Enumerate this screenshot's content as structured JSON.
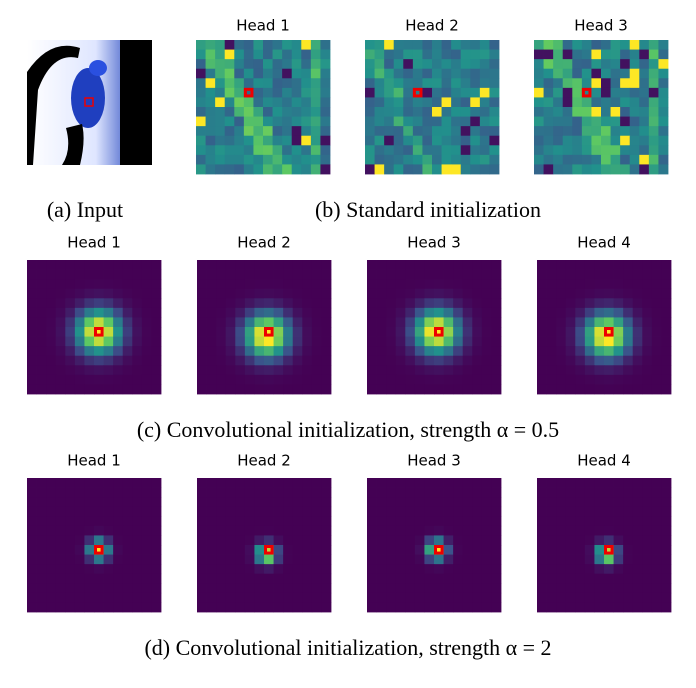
{
  "input": {
    "caption": "(a) Input"
  },
  "standard": {
    "heads": [
      "Head 1",
      "Head 2",
      "Head 3"
    ],
    "caption": "(b) Standard initialization"
  },
  "conv_low": {
    "heads": [
      "Head 1",
      "Head 2",
      "Head 3",
      "Head 4"
    ],
    "caption": "(c) Convolutional initialization, strength α = 0.5"
  },
  "conv_high": {
    "heads": [
      "Head 1",
      "Head 2",
      "Head 3",
      "Head 4"
    ],
    "caption": "(d) Convolutional initialization, strength α = 2"
  }
}
